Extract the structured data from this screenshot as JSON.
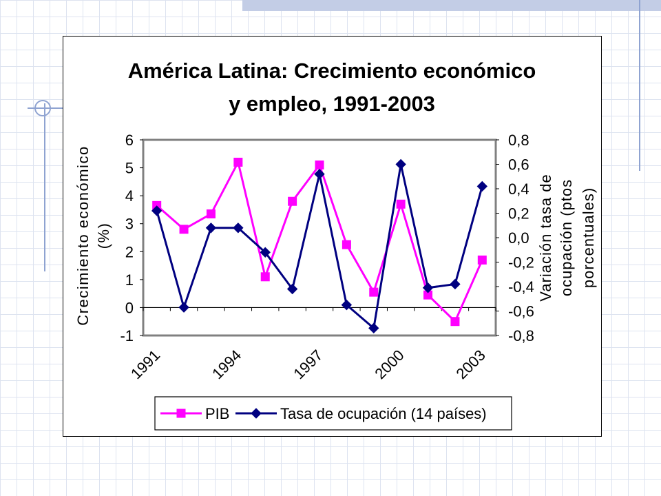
{
  "chart_data": {
    "type": "line",
    "title": [
      "América Latina: Crecimiento económico",
      "y empleo, 1991-2003"
    ],
    "x": [
      1991,
      1992,
      1993,
      1994,
      1995,
      1996,
      1997,
      1998,
      1999,
      2000,
      2001,
      2002,
      2003
    ],
    "x_tick_labels": [
      "1991",
      "1994",
      "1997",
      "2000",
      "2003"
    ],
    "y_left": {
      "label": [
        "Crecimiento económico",
        "(%)"
      ],
      "lim": [
        -1,
        6
      ],
      "ticks": [
        "-1",
        "0",
        "1",
        "2",
        "3",
        "4",
        "5",
        "6"
      ]
    },
    "y_right": {
      "label": [
        "Variación tasa de",
        "ocupación (ptos",
        "porcentuales)"
      ],
      "lim": [
        -0.8,
        0.8
      ],
      "ticks": [
        "-0,8",
        "-0,6",
        "-0,4",
        "-0,2",
        "0,0",
        "0,2",
        "0,4",
        "0,6",
        "0,8"
      ]
    },
    "series": [
      {
        "name": "PIB",
        "axis": "left",
        "color": "#ff00ff",
        "marker": "square",
        "values": [
          3.65,
          2.8,
          3.35,
          5.2,
          1.1,
          3.8,
          5.1,
          2.25,
          0.55,
          3.7,
          0.45,
          -0.5,
          1.7
        ]
      },
      {
        "name": "Tasa de ocupación (14 países)",
        "axis": "right",
        "color": "#000080",
        "marker": "diamond",
        "values": [
          0.22,
          -0.57,
          0.08,
          0.08,
          -0.12,
          -0.42,
          0.52,
          -0.55,
          -0.74,
          0.6,
          -0.41,
          -0.38,
          0.42
        ]
      }
    ],
    "grid": false,
    "legend": "bottom"
  }
}
